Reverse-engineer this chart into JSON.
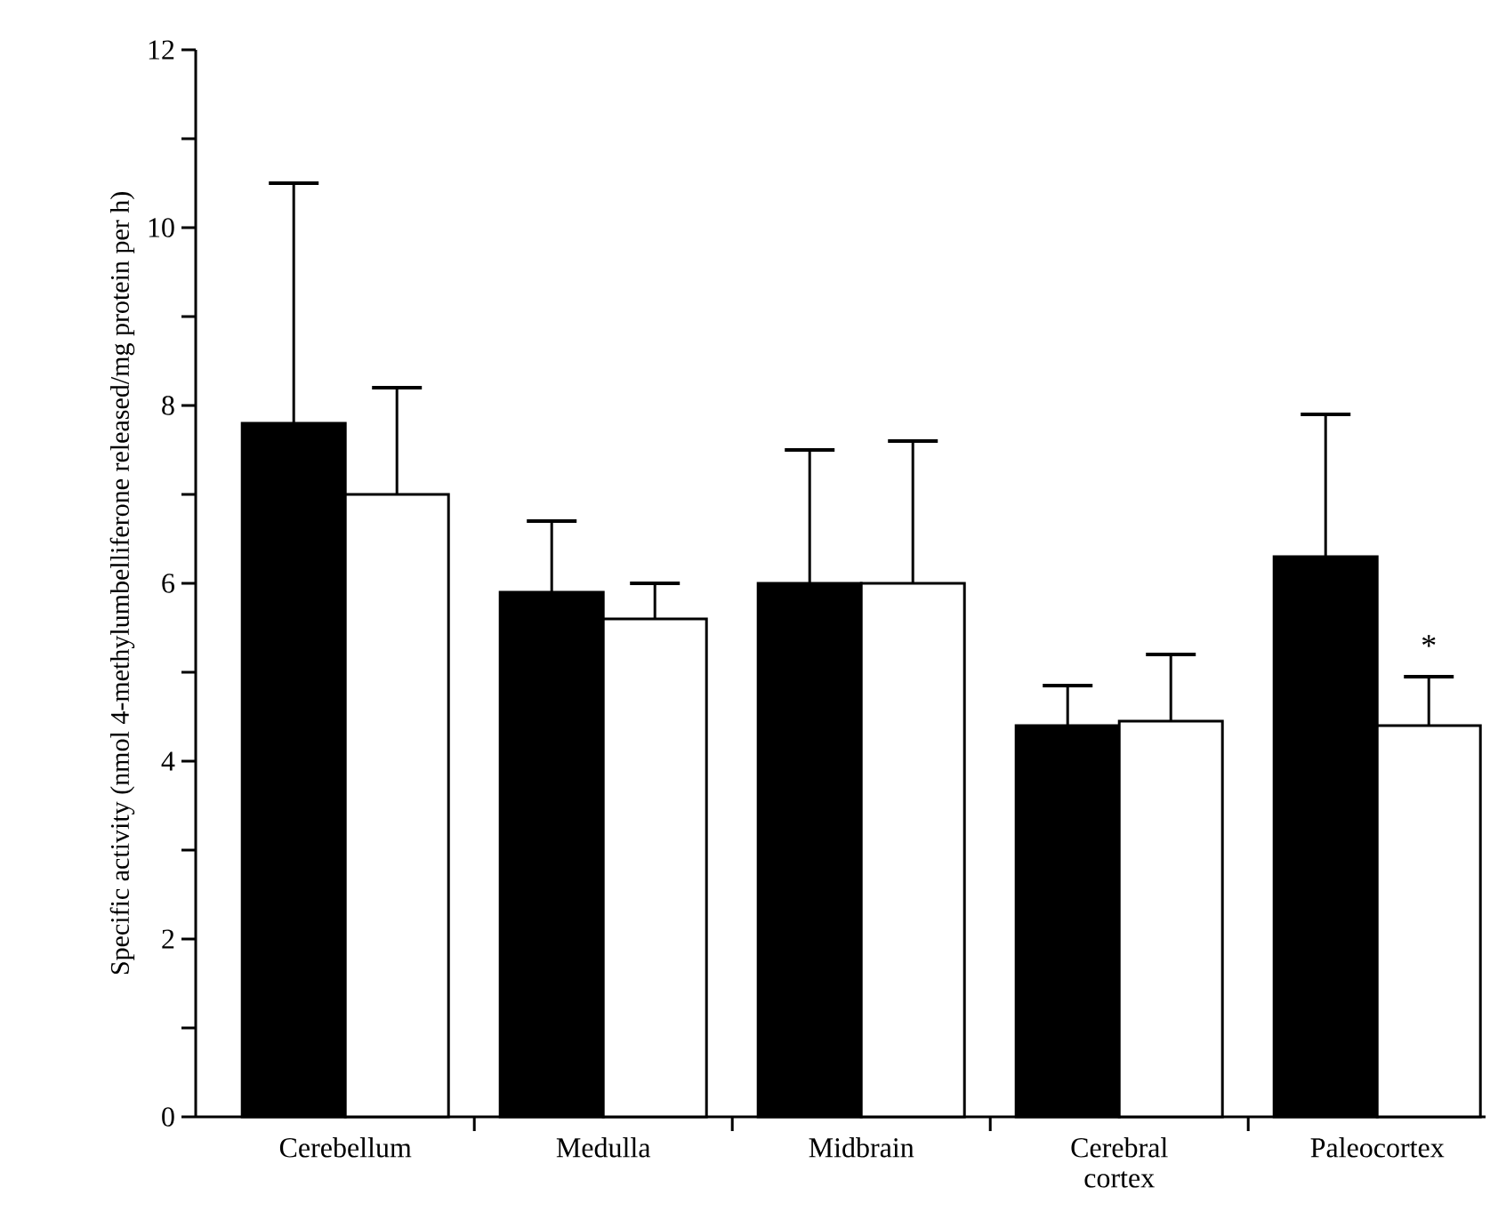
{
  "chart_data": {
    "type": "bar",
    "ylabel": "Specific activity (nmol 4-methylumbelliferone released/mg protein per h)",
    "categories": [
      "Cerebellum",
      "Medulla",
      "Midbrain",
      "Cerebral cortex",
      "Paleocortex"
    ],
    "series": [
      {
        "color": "#000000",
        "values": [
          7.8,
          5.9,
          6.0,
          4.4,
          6.3
        ],
        "errors": [
          2.7,
          0.8,
          1.5,
          0.45,
          1.6
        ]
      },
      {
        "color": "#ffffff",
        "values": [
          7.0,
          5.6,
          6.0,
          4.45,
          4.4
        ],
        "errors": [
          1.2,
          0.4,
          1.6,
          0.75,
          0.55
        ]
      }
    ],
    "ylim": [
      0,
      12
    ],
    "yticks": [
      0,
      {
        "value": 1,
        "label": null
      },
      2,
      {
        "value": 3,
        "label": null
      },
      4,
      {
        "value": 5,
        "label": null
      },
      6,
      {
        "value": 7,
        "label": null
      },
      8,
      {
        "value": 9,
        "label": null
      },
      10,
      {
        "value": 11,
        "label": null
      },
      12
    ],
    "annotations": [
      {
        "text": "*",
        "x": "Paleocortex",
        "y": 5.3
      }
    ]
  }
}
